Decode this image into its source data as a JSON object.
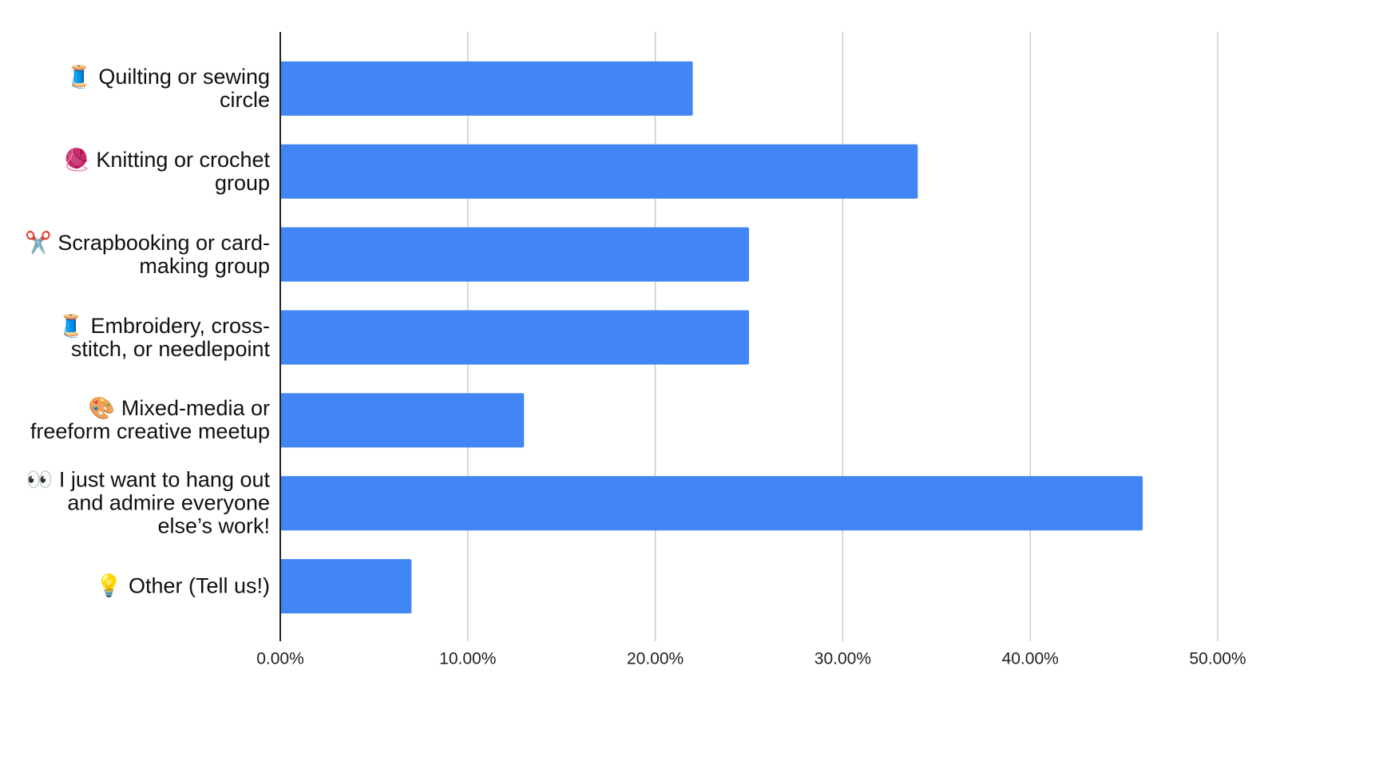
{
  "chart_data": {
    "type": "hbar",
    "categories": [
      "🧵 Quilting or sewing circle",
      "🧶 Knitting or crochet group",
      "✂️ Scrapbooking or card-making group",
      "🧵 Embroidery, cross-stitch, or needlepoint",
      "🎨 Mixed-media or freeform creative meetup",
      "👀 I just want to hang out and admire everyone else’s work!",
      "💡 Other (Tell us!)"
    ],
    "values": [
      22,
      34,
      25,
      25,
      13,
      46,
      7
    ],
    "color": "#4285f4",
    "xlim": [
      0,
      50
    ],
    "xticks": [
      {
        "value": 0,
        "label": "0.00%"
      },
      {
        "value": 10,
        "label": "10.00%"
      },
      {
        "value": 20,
        "label": "20.00%"
      },
      {
        "value": 30,
        "label": "30.00%"
      },
      {
        "value": 40,
        "label": "40.00%"
      },
      {
        "value": 50,
        "label": "50.00%"
      }
    ],
    "grid": true
  }
}
